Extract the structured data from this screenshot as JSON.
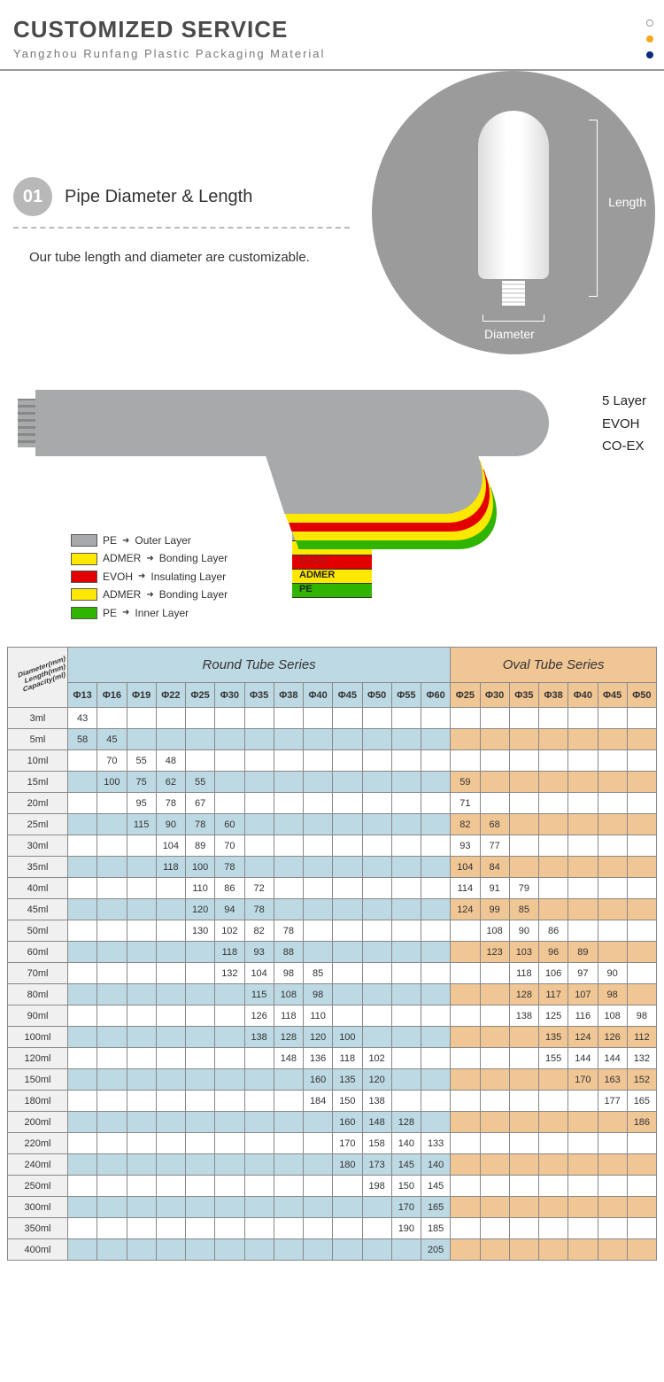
{
  "header": {
    "title": "CUSTOMIZED SERVICE",
    "subtitle": "Yangzhou Runfang Plastic Packaging Material",
    "dot_colors": [
      "#ffffff",
      "#f5a623",
      "#0a2a7a"
    ]
  },
  "section1": {
    "step_number": "01",
    "step_title": "Pipe Diameter & Length",
    "description": "Our tube length and diameter are customizable.",
    "label_length": "Length",
    "label_diameter": "Diameter"
  },
  "layers": {
    "side_labels": [
      "5 Layer",
      "EVOH",
      "CO-EX"
    ],
    "legend": [
      {
        "color": "#a7a9aa",
        "name": "PE",
        "desc": "Outer Layer"
      },
      {
        "color": "#ffe800",
        "name": "ADMER",
        "desc": "Bonding Layer"
      },
      {
        "color": "#e20000",
        "name": "EVOH",
        "desc": "Insulating Layer"
      },
      {
        "color": "#ffe800",
        "name": "ADMER",
        "desc": "Bonding Layer"
      },
      {
        "color": "#2fb400",
        "name": "PE",
        "desc": "Inner Layer"
      }
    ],
    "peel_colors": [
      "#a7a9aa",
      "#ffe800",
      "#e20000",
      "#ffe800",
      "#2fb400"
    ],
    "layer_label_bg": [
      "#a7a9aa",
      "#ffe800",
      "#e20000",
      "#ffe800",
      "#2fb400"
    ],
    "layer_label_text_color": [
      "#222",
      "#222",
      "#aa1a1a",
      "#222",
      "#222"
    ]
  },
  "table": {
    "corner_lines": [
      "Diameter(mm)",
      "Length(mm)",
      "Capacity(ml)"
    ],
    "round_title": "Round Tube Series",
    "oval_title": "Oval Tube Series",
    "round_cols": [
      "Φ13",
      "Φ16",
      "Φ19",
      "Φ22",
      "Φ25",
      "Φ30",
      "Φ35",
      "Φ38",
      "Φ40",
      "Φ45",
      "Φ50",
      "Φ55",
      "Φ60"
    ],
    "oval_cols": [
      "Φ25",
      "Φ30",
      "Φ35",
      "Φ38",
      "Φ40",
      "Φ45",
      "Φ50"
    ],
    "rows": [
      {
        "cap": "3ml",
        "alt": false,
        "r": [
          "43",
          "",
          "",
          "",
          "",
          "",
          "",
          "",
          "",
          "",
          "",
          "",
          ""
        ],
        "o": [
          "",
          "",
          "",
          "",
          "",
          "",
          ""
        ]
      },
      {
        "cap": "5ml",
        "alt": true,
        "r": [
          "58",
          "45",
          "",
          "",
          "",
          "",
          "",
          "",
          "",
          "",
          "",
          "",
          ""
        ],
        "o": [
          "",
          "",
          "",
          "",
          "",
          "",
          ""
        ]
      },
      {
        "cap": "10ml",
        "alt": false,
        "r": [
          "",
          "70",
          "55",
          "48",
          "",
          "",
          "",
          "",
          "",
          "",
          "",
          "",
          ""
        ],
        "o": [
          "",
          "",
          "",
          "",
          "",
          "",
          ""
        ]
      },
      {
        "cap": "15ml",
        "alt": true,
        "r": [
          "",
          "100",
          "75",
          "62",
          "55",
          "",
          "",
          "",
          "",
          "",
          "",
          "",
          ""
        ],
        "o": [
          "59",
          "",
          "",
          "",
          "",
          "",
          ""
        ]
      },
      {
        "cap": "20ml",
        "alt": false,
        "r": [
          "",
          "",
          "95",
          "78",
          "67",
          "",
          "",
          "",
          "",
          "",
          "",
          "",
          ""
        ],
        "o": [
          "71",
          "",
          "",
          "",
          "",
          "",
          ""
        ]
      },
      {
        "cap": "25ml",
        "alt": true,
        "r": [
          "",
          "",
          "115",
          "90",
          "78",
          "60",
          "",
          "",
          "",
          "",
          "",
          "",
          ""
        ],
        "o": [
          "82",
          "68",
          "",
          "",
          "",
          "",
          ""
        ]
      },
      {
        "cap": "30ml",
        "alt": false,
        "r": [
          "",
          "",
          "",
          "104",
          "89",
          "70",
          "",
          "",
          "",
          "",
          "",
          "",
          ""
        ],
        "o": [
          "93",
          "77",
          "",
          "",
          "",
          "",
          ""
        ]
      },
      {
        "cap": "35ml",
        "alt": true,
        "r": [
          "",
          "",
          "",
          "118",
          "100",
          "78",
          "",
          "",
          "",
          "",
          "",
          "",
          ""
        ],
        "o": [
          "104",
          "84",
          "",
          "",
          "",
          "",
          ""
        ]
      },
      {
        "cap": "40ml",
        "alt": false,
        "r": [
          "",
          "",
          "",
          "",
          "110",
          "86",
          "72",
          "",
          "",
          "",
          "",
          "",
          ""
        ],
        "o": [
          "114",
          "91",
          "79",
          "",
          "",
          "",
          ""
        ]
      },
      {
        "cap": "45ml",
        "alt": true,
        "r": [
          "",
          "",
          "",
          "",
          "120",
          "94",
          "78",
          "",
          "",
          "",
          "",
          "",
          ""
        ],
        "o": [
          "124",
          "99",
          "85",
          "",
          "",
          "",
          ""
        ]
      },
      {
        "cap": "50ml",
        "alt": false,
        "r": [
          "",
          "",
          "",
          "",
          "130",
          "102",
          "82",
          "78",
          "",
          "",
          "",
          "",
          ""
        ],
        "o": [
          "",
          "108",
          "90",
          "86",
          "",
          "",
          ""
        ]
      },
      {
        "cap": "60ml",
        "alt": true,
        "r": [
          "",
          "",
          "",
          "",
          "",
          "118",
          "93",
          "88",
          "",
          "",
          "",
          "",
          ""
        ],
        "o": [
          "",
          "123",
          "103",
          "96",
          "89",
          "",
          ""
        ]
      },
      {
        "cap": "70ml",
        "alt": false,
        "r": [
          "",
          "",
          "",
          "",
          "",
          "132",
          "104",
          "98",
          "85",
          "",
          "",
          "",
          ""
        ],
        "o": [
          "",
          "",
          "118",
          "106",
          "97",
          "90",
          ""
        ]
      },
      {
        "cap": "80ml",
        "alt": true,
        "r": [
          "",
          "",
          "",
          "",
          "",
          "",
          "115",
          "108",
          "98",
          "",
          "",
          "",
          ""
        ],
        "o": [
          "",
          "",
          "128",
          "117",
          "107",
          "98",
          ""
        ]
      },
      {
        "cap": "90ml",
        "alt": false,
        "r": [
          "",
          "",
          "",
          "",
          "",
          "",
          "126",
          "118",
          "110",
          "",
          "",
          "",
          ""
        ],
        "o": [
          "",
          "",
          "138",
          "125",
          "116",
          "108",
          "98"
        ]
      },
      {
        "cap": "100ml",
        "alt": true,
        "r": [
          "",
          "",
          "",
          "",
          "",
          "",
          "138",
          "128",
          "120",
          "100",
          "",
          "",
          ""
        ],
        "o": [
          "",
          "",
          "",
          "135",
          "124",
          "126",
          "112"
        ]
      },
      {
        "cap": "120ml",
        "alt": false,
        "r": [
          "",
          "",
          "",
          "",
          "",
          "",
          "",
          "148",
          "136",
          "118",
          "102",
          "",
          ""
        ],
        "o": [
          "",
          "",
          "",
          "155",
          "144",
          "144",
          "132"
        ]
      },
      {
        "cap": "150ml",
        "alt": true,
        "r": [
          "",
          "",
          "",
          "",
          "",
          "",
          "",
          "",
          "160",
          "135",
          "120",
          "",
          ""
        ],
        "o": [
          "",
          "",
          "",
          "",
          "170",
          "163",
          "152"
        ]
      },
      {
        "cap": "180ml",
        "alt": false,
        "r": [
          "",
          "",
          "",
          "",
          "",
          "",
          "",
          "",
          "184",
          "150",
          "138",
          "",
          ""
        ],
        "o": [
          "",
          "",
          "",
          "",
          "",
          "177",
          "165"
        ]
      },
      {
        "cap": "200ml",
        "alt": true,
        "r": [
          "",
          "",
          "",
          "",
          "",
          "",
          "",
          "",
          "",
          "160",
          "148",
          "128",
          ""
        ],
        "o": [
          "",
          "",
          "",
          "",
          "",
          "",
          "186"
        ]
      },
      {
        "cap": "220ml",
        "alt": false,
        "r": [
          "",
          "",
          "",
          "",
          "",
          "",
          "",
          "",
          "",
          "170",
          "158",
          "140",
          "133"
        ],
        "o": [
          "",
          "",
          "",
          "",
          "",
          "",
          ""
        ]
      },
      {
        "cap": "240ml",
        "alt": true,
        "r": [
          "",
          "",
          "",
          "",
          "",
          "",
          "",
          "",
          "",
          "180",
          "173",
          "145",
          "140"
        ],
        "o": [
          "",
          "",
          "",
          "",
          "",
          "",
          ""
        ]
      },
      {
        "cap": "250ml",
        "alt": false,
        "r": [
          "",
          "",
          "",
          "",
          "",
          "",
          "",
          "",
          "",
          "",
          "198",
          "150",
          "145"
        ],
        "o": [
          "",
          "",
          "",
          "",
          "",
          "",
          ""
        ]
      },
      {
        "cap": "300ml",
        "alt": true,
        "r": [
          "",
          "",
          "",
          "",
          "",
          "",
          "",
          "",
          "",
          "",
          "",
          "170",
          "165"
        ],
        "o": [
          "",
          "",
          "",
          "",
          "",
          "",
          ""
        ]
      },
      {
        "cap": "350ml",
        "alt": false,
        "r": [
          "",
          "",
          "",
          "",
          "",
          "",
          "",
          "",
          "",
          "",
          "",
          "190",
          "185"
        ],
        "o": [
          "",
          "",
          "",
          "",
          "",
          "",
          ""
        ]
      },
      {
        "cap": "400ml",
        "alt": true,
        "r": [
          "",
          "",
          "",
          "",
          "",
          "",
          "",
          "",
          "",
          "",
          "",
          "",
          "205"
        ],
        "o": [
          "",
          "",
          "",
          "",
          "",
          "",
          ""
        ]
      }
    ],
    "colors": {
      "round_bg": "#bdd9e3",
      "oval_bg": "#f0c695",
      "row_header_bg": "#f0f0f0",
      "border": "#888888"
    }
  }
}
